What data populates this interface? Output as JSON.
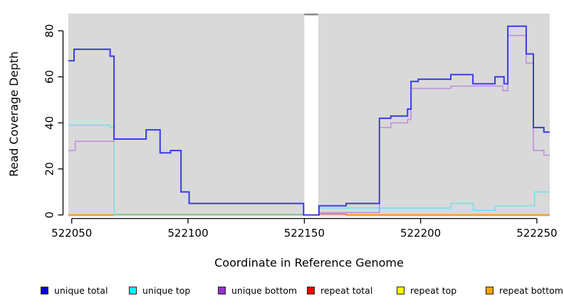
{
  "chart_data": {
    "type": "line",
    "subtype": "step",
    "title": "",
    "xlabel": "Coordinate in Reference Genome",
    "ylabel": "Read Coverage Depth",
    "x_tick_labels": [
      "522050",
      "522100",
      "522150",
      "522200",
      "522250"
    ],
    "x_tick_values": [
      522050,
      522100,
      522150,
      522200,
      522250
    ],
    "y_tick_labels": [
      "0",
      "20",
      "40",
      "60",
      "80"
    ],
    "y_tick_values": [
      0,
      20,
      40,
      60,
      80
    ],
    "xlim": [
      522048.6,
      522255.5
    ],
    "ylim": [
      0,
      88
    ],
    "grid": "off",
    "plot_bg_color": "#d9d9d9",
    "coverage_gap_band": {
      "from": 522150,
      "to": 522156,
      "fill": "#ffffff",
      "cap_color": "#8a8a8a"
    },
    "legend_position": "bottom",
    "legend": [
      {
        "label": "unique total",
        "swatch_color": "#0000e0"
      },
      {
        "label": "unique top",
        "swatch_color": "#00ffff"
      },
      {
        "label": "unique bottom",
        "swatch_color": "#9932cc"
      },
      {
        "label": "repeat total",
        "swatch_color": "#ff0000"
      },
      {
        "label": "repeat top",
        "swatch_color": "#ffff00"
      },
      {
        "label": "repeat bottom",
        "swatch_color": "#ffa500"
      }
    ],
    "series": [
      {
        "name": "unique total",
        "line_color": "#3b3be8",
        "width": 2,
        "segments": [
          [
            [
              522048.6,
              67
            ],
            [
              522051,
              72
            ],
            [
              522066.5,
              69
            ],
            [
              522068.2,
              33
            ],
            [
              522082,
              37
            ],
            [
              522088,
              27
            ],
            [
              522092.5,
              28
            ],
            [
              522097,
              10
            ],
            [
              522100.5,
              5
            ],
            [
              522149.7,
              0
            ],
            [
              522156.3,
              4
            ],
            [
              522168,
              5
            ],
            [
              522182.3,
              42
            ],
            [
              522187.2,
              43
            ],
            [
              522194.4,
              46
            ],
            [
              522195.9,
              58
            ],
            [
              522199,
              59
            ],
            [
              522213,
              61
            ],
            [
              522222.5,
              57
            ],
            [
              522232,
              60
            ],
            [
              522235.9,
              57
            ],
            [
              522237.5,
              82
            ],
            [
              522245.4,
              70
            ],
            [
              522248.5,
              38
            ],
            [
              522253,
              36
            ],
            [
              522255.5,
              36
            ]
          ]
        ]
      },
      {
        "name": "unique top",
        "line_color": "#6fe2e9",
        "width": 1.5,
        "segments": [
          [
            [
              522048.6,
              39
            ],
            [
              522066.5,
              38
            ],
            [
              522068.2,
              0
            ]
          ],
          [
            [
              522156.3,
              3
            ],
            [
              522213,
              5
            ],
            [
              522222.7,
              2
            ],
            [
              522232,
              4
            ],
            [
              522249,
              10
            ],
            [
              522255.5,
              10
            ]
          ]
        ]
      },
      {
        "name": "unique bottom",
        "line_color": "#c08ae0",
        "width": 1.5,
        "segments": [
          [
            [
              522048.6,
              28
            ],
            [
              522051.5,
              32
            ],
            [
              522068.2,
              33
            ],
            [
              522082,
              37
            ],
            [
              522088,
              27
            ],
            [
              522092.5,
              28
            ],
            [
              522097,
              10
            ],
            [
              522100.5,
              5
            ],
            [
              522149.7,
              0
            ],
            [
              522156.3,
              1
            ],
            [
              522182.3,
              38
            ],
            [
              522187.2,
              40
            ],
            [
              522194.4,
              41.5
            ],
            [
              522195.9,
              55
            ],
            [
              522213,
              56
            ],
            [
              522235.3,
              54
            ],
            [
              522237.5,
              78
            ],
            [
              522245.4,
              66
            ],
            [
              522248.5,
              28
            ],
            [
              522253,
              26
            ],
            [
              522255.5,
              26
            ]
          ]
        ]
      },
      {
        "name": "repeat total",
        "line_color": "#e06377",
        "width": 1.5,
        "segments": [
          [
            [
              522156.3,
              0.4
            ],
            [
              522168,
              0
            ],
            [
              522255.5,
              0
            ]
          ]
        ]
      },
      {
        "name": "repeat top",
        "line_color": "#72c377",
        "width": 1.5,
        "segments": [
          [
            [
              522068.2,
              0.2
            ],
            [
              522149.7,
              0.2
            ]
          ]
        ]
      },
      {
        "name": "repeat bottom",
        "line_color": "#ff9020",
        "width": 2,
        "segments": [
          [
            [
              522048.6,
              0
            ],
            [
              522068.2,
              0
            ]
          ],
          [
            [
              522168,
              0
            ],
            [
              522255.5,
              0
            ]
          ]
        ]
      }
    ]
  }
}
